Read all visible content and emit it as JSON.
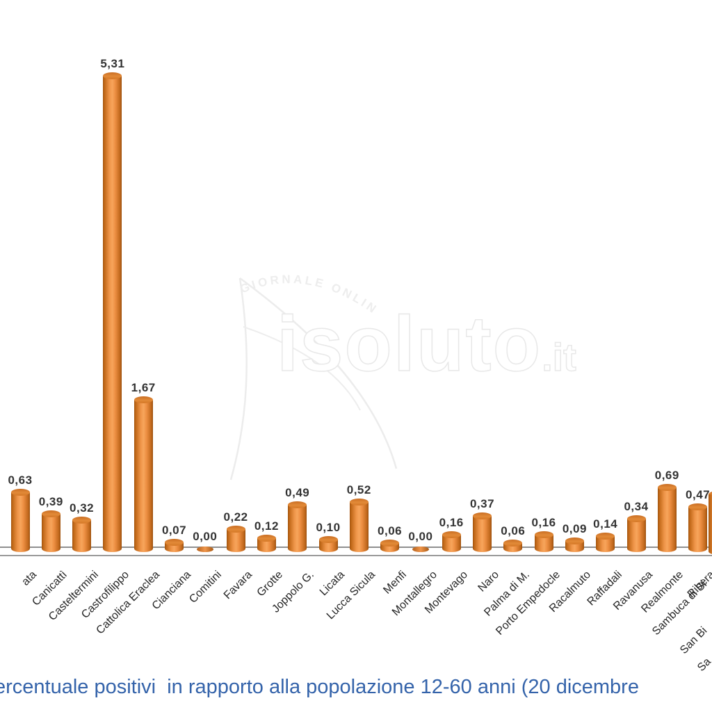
{
  "title": {
    "text": "ercentuale positivi  in rapporto alla popolazione 12-60 anni (20 dicembre",
    "color": "#3463AA"
  },
  "watermark": {
    "logo_text": "isoluto",
    "suffix": ".it",
    "tagline": "GIORNALE ONLINE"
  },
  "chart_data": {
    "type": "bar",
    "title": "ercentuale positivi  in rapporto alla popolazione 12-60 anni (20 dicembre",
    "categories": [
      "ata",
      "Canicattì",
      "Casteltermini",
      "Castrofilippo",
      "Cattolica Eraclea",
      "Cianciana",
      "Comitini",
      "Favara",
      "Grotte",
      "Joppolo G.",
      "Licata",
      "Lucca Sicula",
      "Menfi",
      "Montallegro",
      "Montevago",
      "Naro",
      "Palma di M.",
      "Porto Empedocle",
      "Racalmuto",
      "Raffadali",
      "Ravanusa",
      "Realmonte",
      "Ribera"
    ],
    "values": [
      0.63,
      0.39,
      0.32,
      5.31,
      1.67,
      0.07,
      0.0,
      0.22,
      0.12,
      0.49,
      0.1,
      0.52,
      0.06,
      0.0,
      0.16,
      0.37,
      0.06,
      0.16,
      0.09,
      0.14,
      0.34,
      0.69,
      0.47
    ],
    "value_labels": [
      "0,63",
      "0,39",
      "0,32",
      "5,31",
      "1,67",
      "0,07",
      "0,00",
      "0,22",
      "0,12",
      "0,49",
      "0,10",
      "0,52",
      "0,06",
      "0,00",
      "0,16",
      "0,37",
      "0,06",
      "0,16",
      "0,09",
      "0,14",
      "0,34",
      "0,69",
      "0,47"
    ],
    "edge_labels": [
      "Sambuca di Si",
      "San Bi",
      "Sa"
    ],
    "bar_color": "#ED8B3E",
    "axis_color": "#8F8F8F",
    "xlabel": "",
    "ylabel": "",
    "ylim": [
      0,
      5.31
    ],
    "grid": false,
    "legend": "none"
  }
}
